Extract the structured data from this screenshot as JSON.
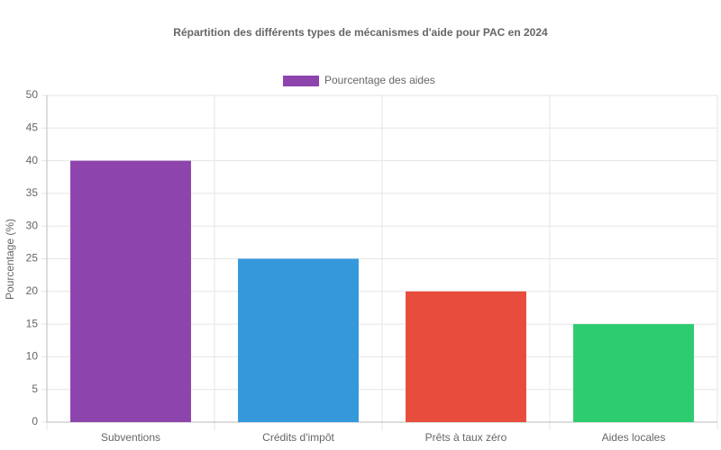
{
  "chart_data": {
    "type": "bar",
    "title": "Répartition des différents types de mécanismes d'aide pour PAC en 2024",
    "y_label": "Pourcentage (%)",
    "categories": [
      "Subventions",
      "Crédits d'impôt",
      "Prêts à taux zéro",
      "Aides locales"
    ],
    "series": [
      {
        "name": "Pourcentage des aides",
        "colors": [
          "#8e44ad",
          "#3498db",
          "#e74c3c",
          "#2ecc71"
        ],
        "values": [
          40,
          25,
          20,
          15
        ]
      }
    ],
    "ylim": [
      0,
      50
    ],
    "yticks": [
      0,
      5,
      10,
      15,
      20,
      25,
      30,
      35,
      40,
      45,
      50
    ],
    "grid": true,
    "legend": "top"
  }
}
